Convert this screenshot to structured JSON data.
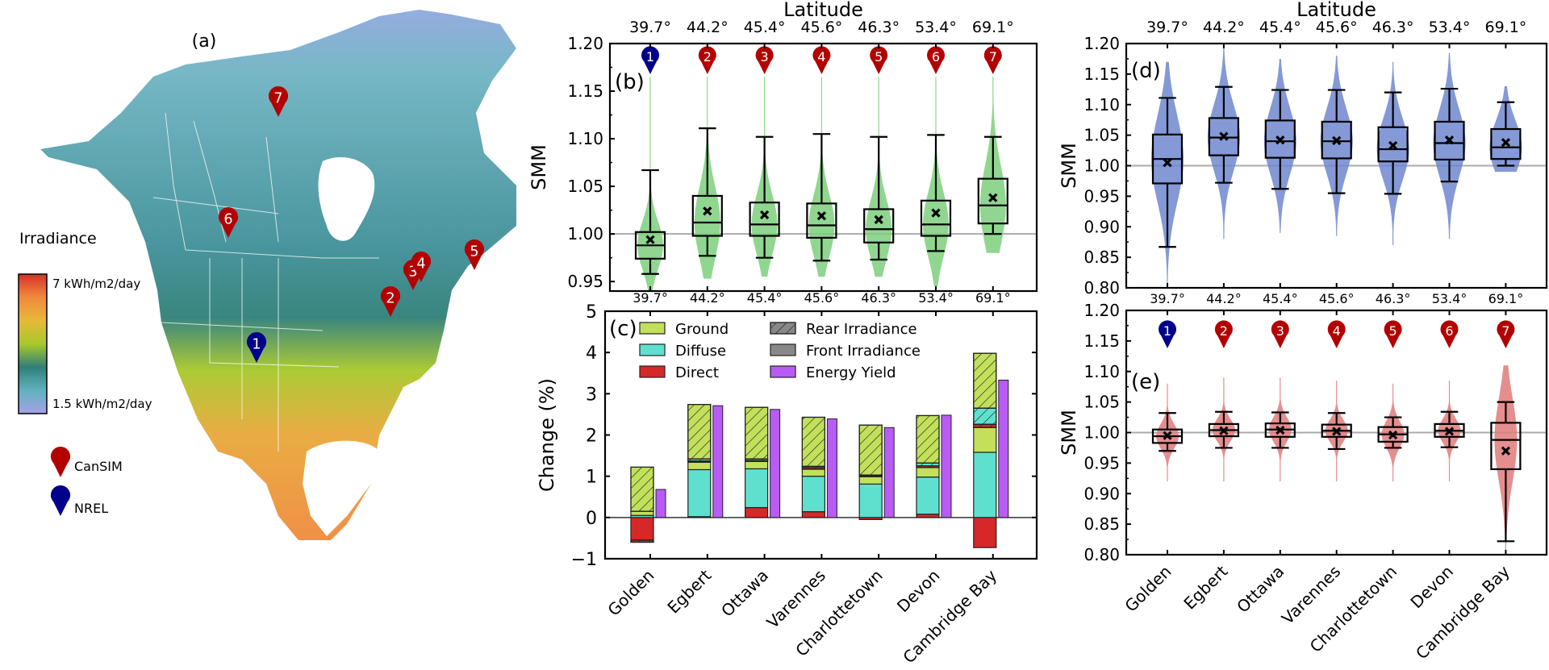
{
  "figure": {
    "panel_labels": {
      "a": "(a)",
      "b": "(b)",
      "c": "(c)",
      "d": "(d)",
      "e": "(e)"
    },
    "map": {
      "legend_title": "Irradiance",
      "colorbar_max_label": "7 kWh/m2/day",
      "colorbar_min_label": "1.5 kWh/m2/day",
      "colorbar_colors": [
        "#d73027",
        "#f08a3c",
        "#e8b83a",
        "#a8c82a",
        "#2f7f78",
        "#5fb3bd",
        "#a7a0e8"
      ],
      "marker_legend": [
        {
          "label": "CanSIM",
          "color": "#b30000"
        },
        {
          "label": "NREL",
          "color": "#00008b"
        }
      ],
      "sites": [
        {
          "id": "1",
          "network": "NREL",
          "name": "Golden"
        },
        {
          "id": "2",
          "network": "CanSIM",
          "name": "Egbert"
        },
        {
          "id": "3",
          "network": "CanSIM",
          "name": "Ottawa"
        },
        {
          "id": "4",
          "network": "CanSIM",
          "name": "Varennes"
        },
        {
          "id": "5",
          "network": "CanSIM",
          "name": "Charlottetown"
        },
        {
          "id": "6",
          "network": "CanSIM",
          "name": "Devon"
        },
        {
          "id": "7",
          "network": "CanSIM",
          "name": "Cambridge Bay"
        }
      ]
    }
  },
  "chart_data": [
    {
      "id": "b",
      "type": "box-violin",
      "title": "",
      "top_axis_label": "Latitude",
      "latitudes": [
        "39.7°",
        "44.2°",
        "45.4°",
        "45.6°",
        "46.3°",
        "53.4°",
        "69.1°"
      ],
      "categories": [
        "Golden",
        "Egbert",
        "Ottawa",
        "Varennes",
        "Charlottetown",
        "Devon",
        "Cambridge Bay"
      ],
      "marker_ids": [
        "1",
        "2",
        "3",
        "4",
        "5",
        "6",
        "7"
      ],
      "marker_colors": [
        "#00008b",
        "#b30000",
        "#b30000",
        "#b30000",
        "#b30000",
        "#b30000",
        "#b30000"
      ],
      "ylabel": "SMM",
      "ylim": [
        0.94,
        1.2
      ],
      "yticks": [
        "0.95",
        "1.00",
        "1.05",
        "1.10",
        "1.15",
        "1.20"
      ],
      "reference_line": 1.0,
      "violin_color": "#7ccf7c",
      "boxes": [
        {
          "whislo": 0.958,
          "q1": 0.974,
          "med": 0.988,
          "q3": 1.002,
          "whishi": 1.067,
          "mean": 0.994,
          "vmin": 0.94,
          "vmax": 1.165
        },
        {
          "whislo": 0.977,
          "q1": 0.998,
          "med": 1.012,
          "q3": 1.04,
          "whishi": 1.111,
          "mean": 1.024,
          "vmin": 0.953,
          "vmax": 1.165
        },
        {
          "whislo": 0.975,
          "q1": 0.998,
          "med": 1.01,
          "q3": 1.033,
          "whishi": 1.102,
          "mean": 1.02,
          "vmin": 0.955,
          "vmax": 1.165
        },
        {
          "whislo": 0.972,
          "q1": 0.996,
          "med": 1.009,
          "q3": 1.032,
          "whishi": 1.105,
          "mean": 1.019,
          "vmin": 0.955,
          "vmax": 1.165
        },
        {
          "whislo": 0.973,
          "q1": 0.991,
          "med": 1.005,
          "q3": 1.026,
          "whishi": 1.102,
          "mean": 1.015,
          "vmin": 0.955,
          "vmax": 1.165
        },
        {
          "whislo": 0.982,
          "q1": 0.998,
          "med": 1.01,
          "q3": 1.035,
          "whishi": 1.104,
          "mean": 1.022,
          "vmin": 0.945,
          "vmax": 1.165
        },
        {
          "whislo": 1.0,
          "q1": 1.011,
          "med": 1.03,
          "q3": 1.058,
          "whishi": 1.102,
          "mean": 1.038,
          "vmin": 0.98,
          "vmax": 1.165
        }
      ]
    },
    {
      "id": "c",
      "type": "bar",
      "stacked": true,
      "ylabel": "Change (%)",
      "ylim": [
        -1,
        5
      ],
      "yticks": [
        "−1",
        "0",
        "1",
        "2",
        "3",
        "4",
        "5"
      ],
      "top_tick_labels": [
        "39.7°",
        "44.2°",
        "45.4°",
        "45.6°",
        "46.3°",
        "53.4°",
        "69.1°"
      ],
      "categories": [
        "Golden",
        "Egbert",
        "Ottawa",
        "Varennes",
        "Charlottetown",
        "Devon",
        "Cambridge Bay"
      ],
      "legend": [
        {
          "label": "Ground",
          "color": "#c2e05a",
          "hatch": false
        },
        {
          "label": "Diffuse",
          "color": "#5fe0cf",
          "hatch": false
        },
        {
          "label": "Direct",
          "color": "#d62828",
          "hatch": false
        },
        {
          "label": "Rear Irradiance",
          "color": "#888888",
          "hatch": true
        },
        {
          "label": "Front Irradiance",
          "color": "#888888",
          "hatch": false
        },
        {
          "label": "Energy Yield",
          "color": "#b85cf5",
          "hatch": false
        }
      ],
      "legend_placement": "top-left",
      "series": [
        {
          "name": "Front Direct",
          "values": [
            -0.55,
            0.02,
            0.24,
            0.14,
            -0.05,
            0.08,
            -0.73
          ]
        },
        {
          "name": "Front Diffuse",
          "values": [
            0.05,
            1.14,
            0.94,
            0.86,
            0.81,
            0.9,
            1.58
          ]
        },
        {
          "name": "Front Ground",
          "values": [
            0.1,
            0.18,
            0.18,
            0.17,
            0.18,
            0.23,
            0.6
          ]
        },
        {
          "name": "Rear Direct",
          "values": [
            -0.05,
            0.03,
            0.02,
            0.04,
            0.02,
            0.04,
            0.08
          ]
        },
        {
          "name": "Rear Diffuse",
          "values": [
            0.0,
            0.05,
            0.04,
            0.03,
            0.02,
            0.07,
            0.39
          ]
        },
        {
          "name": "Rear Ground",
          "values": [
            1.07,
            1.32,
            1.25,
            1.19,
            1.21,
            1.15,
            1.33
          ]
        },
        {
          "name": "Energy Yield",
          "values": [
            0.68,
            2.71,
            2.62,
            2.39,
            2.18,
            2.48,
            3.33
          ]
        }
      ]
    },
    {
      "id": "d",
      "type": "box-violin",
      "top_axis_label": "Latitude",
      "latitudes": [
        "39.7°",
        "44.2°",
        "45.4°",
        "45.6°",
        "46.3°",
        "53.4°",
        "69.1°"
      ],
      "categories": [
        "Golden",
        "Egbert",
        "Ottawa",
        "Varennes",
        "Charlottetown",
        "Devon",
        "Cambridge Bay"
      ],
      "ylabel": "SMM",
      "ylim": [
        0.8,
        1.2
      ],
      "yticks": [
        "0.80",
        "0.85",
        "0.90",
        "0.95",
        "1.00",
        "1.05",
        "1.10",
        "1.15",
        "1.20"
      ],
      "reference_line": 1.0,
      "violin_color": "#6f87cf",
      "boxes": [
        {
          "whislo": 0.867,
          "q1": 0.971,
          "med": 1.011,
          "q3": 1.051,
          "whishi": 1.111,
          "mean": 1.005,
          "vmin": 0.8,
          "vmax": 1.17
        },
        {
          "whislo": 0.972,
          "q1": 1.017,
          "med": 1.046,
          "q3": 1.078,
          "whishi": 1.129,
          "mean": 1.048,
          "vmin": 0.88,
          "vmax": 1.195
        },
        {
          "whislo": 0.962,
          "q1": 1.013,
          "med": 1.04,
          "q3": 1.074,
          "whishi": 1.124,
          "mean": 1.042,
          "vmin": 0.89,
          "vmax": 1.175
        },
        {
          "whislo": 0.955,
          "q1": 1.012,
          "med": 1.04,
          "q3": 1.072,
          "whishi": 1.124,
          "mean": 1.041,
          "vmin": 0.885,
          "vmax": 1.18
        },
        {
          "whislo": 0.954,
          "q1": 1.007,
          "med": 1.027,
          "q3": 1.063,
          "whishi": 1.12,
          "mean": 1.033,
          "vmin": 0.87,
          "vmax": 1.17
        },
        {
          "whislo": 0.974,
          "q1": 1.01,
          "med": 1.037,
          "q3": 1.072,
          "whishi": 1.126,
          "mean": 1.042,
          "vmin": 0.88,
          "vmax": 1.185
        },
        {
          "whislo": 1.0,
          "q1": 1.011,
          "med": 1.03,
          "q3": 1.06,
          "whishi": 1.104,
          "mean": 1.038,
          "vmin": 0.99,
          "vmax": 1.13
        }
      ]
    },
    {
      "id": "e",
      "type": "box-violin",
      "top_tick_labels": [
        "39.7°",
        "44.2°",
        "45.4°",
        "45.6°",
        "46.3°",
        "53.4°",
        "69.1°"
      ],
      "categories": [
        "Golden",
        "Egbert",
        "Ottawa",
        "Varennes",
        "Charlottetown",
        "Devon",
        "Cambridge Bay"
      ],
      "marker_ids": [
        "1",
        "2",
        "3",
        "4",
        "5",
        "6",
        "7"
      ],
      "marker_colors": [
        "#00008b",
        "#b30000",
        "#b30000",
        "#b30000",
        "#b30000",
        "#b30000",
        "#b30000"
      ],
      "ylabel": "SMM",
      "ylim": [
        0.8,
        1.2
      ],
      "yticks": [
        "0.80",
        "0.85",
        "0.90",
        "0.95",
        "1.00",
        "1.05",
        "1.10",
        "1.15",
        "1.20"
      ],
      "reference_line": 1.0,
      "violin_color": "#e07a7a",
      "boxes": [
        {
          "whislo": 0.97,
          "q1": 0.983,
          "med": 0.994,
          "q3": 1.005,
          "whishi": 1.032,
          "mean": 0.995,
          "vmin": 0.92,
          "vmax": 1.08
        },
        {
          "whislo": 0.975,
          "q1": 0.994,
          "med": 1.004,
          "q3": 1.014,
          "whishi": 1.034,
          "mean": 1.003,
          "vmin": 0.92,
          "vmax": 1.09
        },
        {
          "whislo": 0.975,
          "q1": 0.993,
          "med": 1.005,
          "q3": 1.015,
          "whishi": 1.033,
          "mean": 1.004,
          "vmin": 0.92,
          "vmax": 1.09
        },
        {
          "whislo": 0.973,
          "q1": 0.993,
          "med": 1.003,
          "q3": 1.013,
          "whishi": 1.032,
          "mean": 1.002,
          "vmin": 0.92,
          "vmax": 1.085
        },
        {
          "whislo": 0.975,
          "q1": 0.985,
          "med": 0.997,
          "q3": 1.009,
          "whishi": 1.025,
          "mean": 0.996,
          "vmin": 0.92,
          "vmax": 1.08
        },
        {
          "whislo": 0.976,
          "q1": 0.993,
          "med": 1.003,
          "q3": 1.014,
          "whishi": 1.034,
          "mean": 1.002,
          "vmin": 0.92,
          "vmax": 1.085
        },
        {
          "whislo": 0.822,
          "q1": 0.94,
          "med": 0.988,
          "q3": 1.016,
          "whishi": 1.05,
          "mean": 0.97,
          "vmin": 0.8,
          "vmax": 1.11
        }
      ]
    }
  ]
}
